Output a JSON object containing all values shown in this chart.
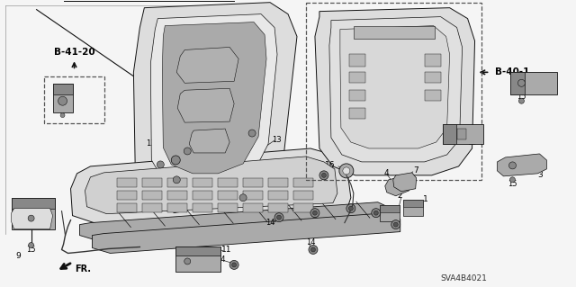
{
  "background_color": "#f5f5f5",
  "fig_width": 6.4,
  "fig_height": 3.19,
  "dpi": 100,
  "ref_b4120": "B-41-20",
  "ref_b401": "B-40-1",
  "diagram_code": "SVA4B4021",
  "fr_label": "FR.",
  "text_color": "#000000",
  "line_color": "#111111",
  "gray_fill": "#c8c8c8",
  "gray_dark": "#888888",
  "gray_mid": "#aaaaaa",
  "gray_light": "#dddddd"
}
